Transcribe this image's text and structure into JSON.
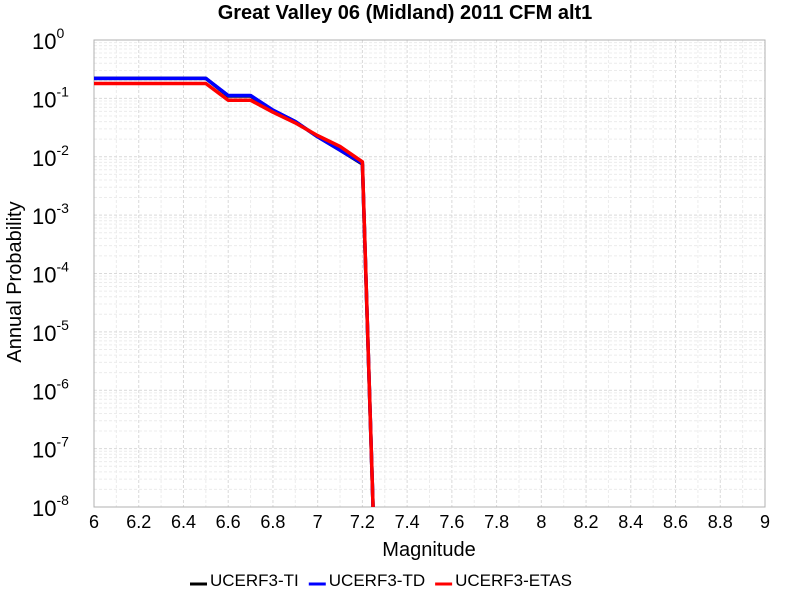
{
  "chart_data": {
    "type": "line",
    "title": "Great Valley 06 (Midland) 2011 CFM alt1",
    "xlabel": "Magnitude",
    "ylabel": "Annual Probability",
    "xlim": [
      6,
      9
    ],
    "ylim": [
      1e-08,
      1
    ],
    "y_scale": "log",
    "grid": true,
    "legend_position": "bottom",
    "x_ticks": [
      "6",
      "6.2",
      "6.4",
      "6.6",
      "6.8",
      "7",
      "7.2",
      "7.4",
      "7.6",
      "7.8",
      "8",
      "8.2",
      "8.4",
      "8.6",
      "8.8",
      "9"
    ],
    "y_ticks": [
      {
        "base": "10",
        "exp": "0",
        "value": 1
      },
      {
        "base": "10",
        "exp": "-1",
        "value": 0.1
      },
      {
        "base": "10",
        "exp": "-2",
        "value": 0.01
      },
      {
        "base": "10",
        "exp": "-3",
        "value": 0.001
      },
      {
        "base": "10",
        "exp": "-4",
        "value": 0.0001
      },
      {
        "base": "10",
        "exp": "-5",
        "value": 1e-05
      },
      {
        "base": "10",
        "exp": "-6",
        "value": 1e-06
      },
      {
        "base": "10",
        "exp": "-7",
        "value": 1e-07
      },
      {
        "base": "10",
        "exp": "-8",
        "value": 1e-08
      }
    ],
    "series": [
      {
        "name": "UCERF3-TI",
        "color": "#000000",
        "x": [
          6,
          6.5,
          6.6,
          6.7,
          6.8,
          6.9,
          7.0,
          7.1,
          7.2,
          7.25
        ],
        "y": [
          0.22,
          0.22,
          0.11,
          0.11,
          0.062,
          0.04,
          0.022,
          0.013,
          0.0075,
          5e-09
        ]
      },
      {
        "name": "UCERF3-TD",
        "color": "#0000ff",
        "x": [
          6,
          6.5,
          6.6,
          6.7,
          6.8,
          6.9,
          7.0,
          7.1,
          7.2,
          7.25
        ],
        "y": [
          0.22,
          0.22,
          0.112,
          0.112,
          0.063,
          0.04,
          0.022,
          0.013,
          0.0077,
          5e-09
        ]
      },
      {
        "name": "UCERF3-ETAS",
        "color": "#ff0000",
        "x": [
          6,
          6.5,
          6.6,
          6.7,
          6.8,
          6.9,
          7.0,
          7.1,
          7.2,
          7.25
        ],
        "y": [
          0.18,
          0.18,
          0.093,
          0.093,
          0.058,
          0.038,
          0.023,
          0.015,
          0.0082,
          5e-09
        ]
      }
    ]
  }
}
